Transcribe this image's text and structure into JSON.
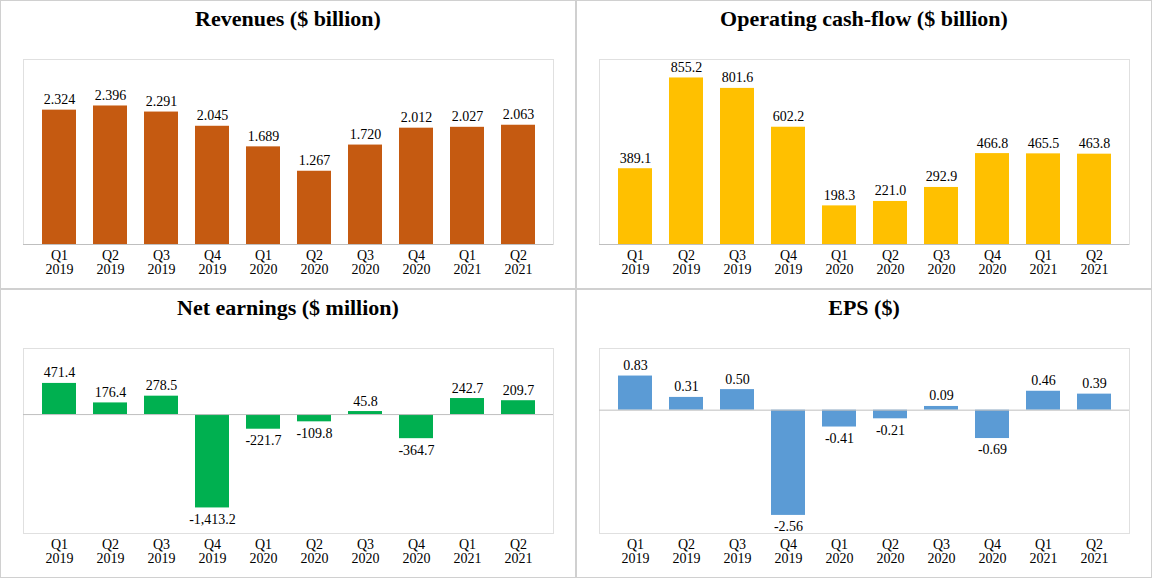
{
  "chart_data": [
    {
      "type": "bar",
      "title": "Revenues ($ billion)",
      "categories": [
        "Q1\n2019",
        "Q2\n2019",
        "Q3\n2019",
        "Q4\n2019",
        "Q1\n2020",
        "Q2\n2020",
        "Q3\n2020",
        "Q4\n2020",
        "Q1\n2021",
        "Q2\n2021"
      ],
      "values": [
        2.324,
        2.396,
        2.291,
        2.045,
        1.689,
        1.267,
        1.72,
        2.012,
        2.027,
        2.063
      ],
      "value_labels": [
        "2.324",
        "2.396",
        "2.291",
        "2.045",
        "1.689",
        "1.267",
        "1.720",
        "2.012",
        "2.027",
        "2.063"
      ],
      "color": "#c55a11",
      "ylim": [
        0,
        3.2
      ],
      "yticks": [
        0
      ],
      "data_labels": true,
      "tick_labels": "x"
    },
    {
      "type": "bar",
      "title": "Operating cash-flow ($ billion)",
      "categories": [
        "Q1\n2019",
        "Q2\n2019",
        "Q3\n2019",
        "Q4\n2019",
        "Q1\n2020",
        "Q2\n2020",
        "Q3\n2020",
        "Q4\n2020",
        "Q1\n2021",
        "Q2\n2021"
      ],
      "values": [
        389.1,
        855.2,
        801.6,
        602.2,
        198.3,
        221.0,
        292.9,
        466.8,
        465.5,
        463.8
      ],
      "value_labels": [
        "389.1",
        "855.2",
        "801.6",
        "602.2",
        "198.3",
        "221.0",
        "292.9",
        "466.8",
        "465.5",
        "463.8"
      ],
      "color": "#ffc000",
      "ylim": [
        0,
        950
      ],
      "yticks": [
        0
      ],
      "data_labels": true,
      "tick_labels": "x"
    },
    {
      "type": "bar",
      "title": "Net earnings ($ million)",
      "categories": [
        "Q1\n2019",
        "Q2\n2019",
        "Q3\n2019",
        "Q4\n2019",
        "Q1\n2020",
        "Q2\n2020",
        "Q3\n2020",
        "Q4\n2020",
        "Q1\n2021",
        "Q2\n2021"
      ],
      "values": [
        471.4,
        176.4,
        278.5,
        -1413.2,
        -221.7,
        -109.8,
        45.8,
        -364.7,
        242.7,
        209.7
      ],
      "value_labels": [
        "471.4",
        "176.4",
        "278.5",
        "-1,413.2",
        "-221.7",
        "-109.8",
        "45.8",
        "-364.7",
        "242.7",
        "209.7"
      ],
      "color": "#00b050",
      "ylim": [
        -1800,
        1000
      ],
      "yticks": [
        0
      ],
      "data_labels": true,
      "tick_labels": "x"
    },
    {
      "type": "bar",
      "title": "EPS ($)",
      "categories": [
        "Q1\n2019",
        "Q2\n2019",
        "Q3\n2019",
        "Q4\n2019",
        "Q1\n2020",
        "Q2\n2020",
        "Q3\n2020",
        "Q4\n2020",
        "Q1\n2021",
        "Q2\n2021"
      ],
      "values": [
        0.83,
        0.31,
        0.5,
        -2.56,
        -0.41,
        -0.21,
        0.09,
        -0.69,
        0.46,
        0.39
      ],
      "value_labels": [
        "0.83",
        "0.31",
        "0.50",
        "-2.56",
        "-0.41",
        "-0.21",
        "0.09",
        "-0.69",
        "0.46",
        "0.39"
      ],
      "color": "#5b9bd5",
      "ylim": [
        -3.0,
        1.5
      ],
      "yticks": [
        0
      ],
      "data_labels": true,
      "tick_labels": "x"
    }
  ]
}
